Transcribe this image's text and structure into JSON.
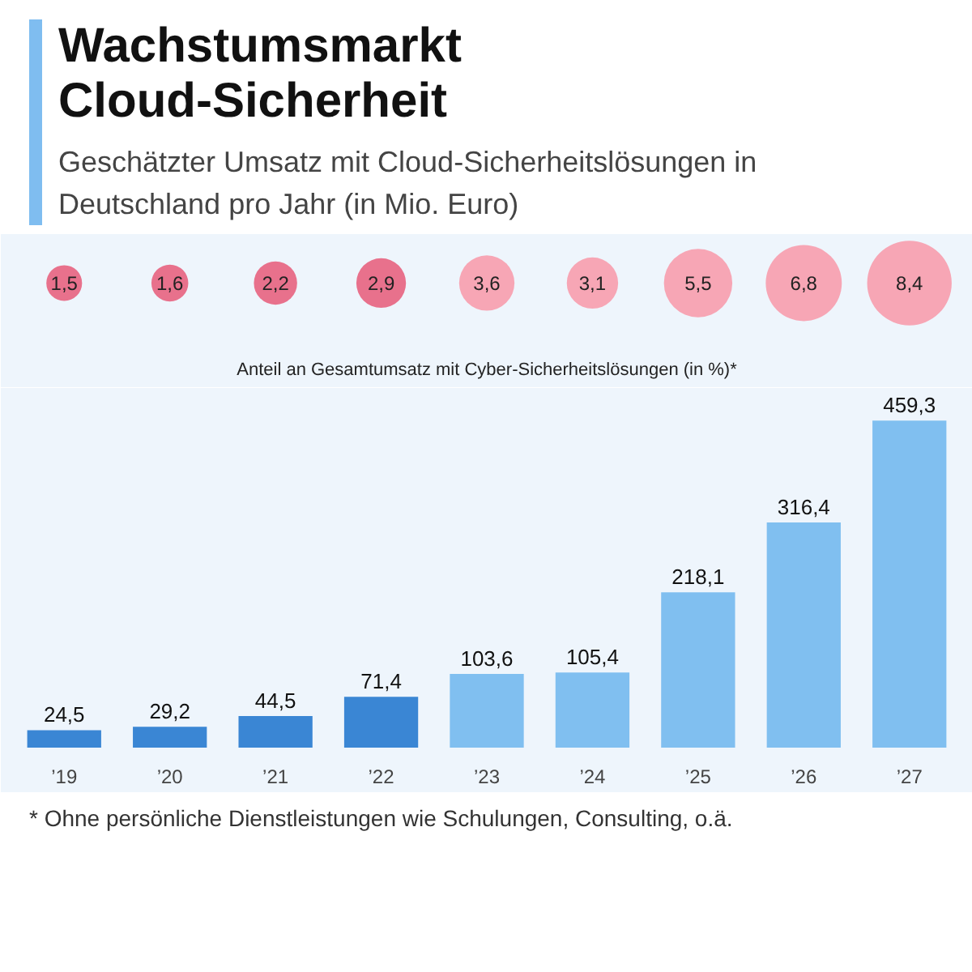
{
  "chart_data": [
    {
      "type": "other",
      "xlabel": "Anteil an Gesamtumsatz mit Cyber-Sicherheitslösungen (in %)*",
      "categories": [
        null,
        null,
        null,
        null,
        null,
        null,
        null,
        null,
        null
      ],
      "values": [
        1.5,
        1.6,
        2.2,
        2.9,
        3.6,
        3.1,
        5.5,
        6.8,
        8.4
      ],
      "value_labels": [
        "1,5",
        "1,6",
        "2,2",
        "2,9",
        "3,6",
        "3,1",
        "5,5",
        "6,8",
        "8,4"
      ],
      "colors": [
        "#e8718c",
        "#e8718c",
        "#e8718c",
        "#e8718c",
        "#f7a6b5",
        "#f7a6b5",
        "#f7a6b5",
        "#f7a6b5",
        "#f7a6b5"
      ]
    },
    {
      "type": "bar",
      "title": "Wachstumsmarkt Cloud-Sicherheit",
      "subtitle": "Geschätzter Umsatz mit Cloud-Sicherheitslösungen in Deutschland pro Jahr (in Mio. Euro)",
      "categories": [
        "’19",
        "’20",
        "’21",
        "’22",
        "’23",
        "’24",
        "’25",
        "’26",
        "’27"
      ],
      "values": [
        24.5,
        29.2,
        44.5,
        71.4,
        103.6,
        105.4,
        218.1,
        316.4,
        459.3
      ],
      "value_labels": [
        "24,5",
        "29,2",
        "44,5",
        "71,4",
        "103,6",
        "105,4",
        "218,1",
        "316,4",
        "459,3"
      ],
      "colors": [
        "#3a86d4",
        "#3a86d4",
        "#3a86d4",
        "#3a86d4",
        "#80bff0",
        "#80bff0",
        "#80bff0",
        "#80bff0",
        "#80bff0"
      ],
      "tick_labels": "x",
      "grid": false,
      "annotations": [
        "* Ohne persönliche Dienstleistungen wie Schulungen, Consulting, o.ä."
      ]
    }
  ]
}
